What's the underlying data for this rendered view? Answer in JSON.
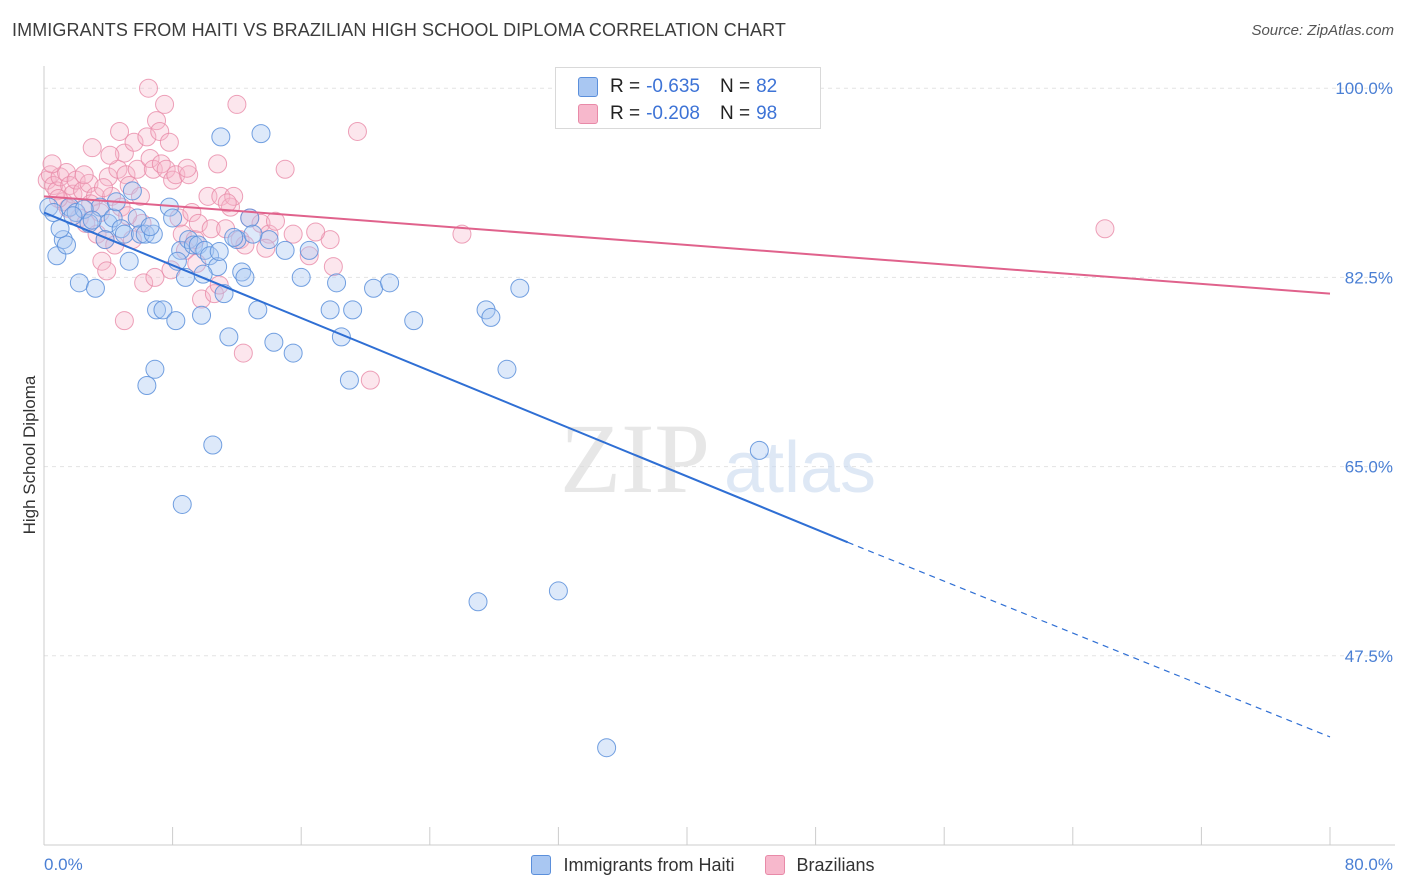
{
  "title": "IMMIGRANTS FROM HAITI VS BRAZILIAN HIGH SCHOOL DIPLOMA CORRELATION CHART",
  "source": "Source: ZipAtlas.com",
  "watermark": {
    "zip": "ZIP",
    "atlas": "atlas"
  },
  "legend_top": {
    "rows": [
      {
        "r_label": "R =",
        "r_value": "-0.635",
        "n_label": "N =",
        "n_value": "82"
      },
      {
        "r_label": "R =",
        "r_value": "-0.208",
        "n_label": "N =",
        "n_value": "98"
      }
    ]
  },
  "legend_bottom": {
    "items": [
      {
        "label": "Immigrants from Haiti"
      },
      {
        "label": "Brazilians"
      }
    ]
  },
  "colors": {
    "blue_fill": "#a9c7f2",
    "blue_stroke": "#5b8fdb",
    "blue_line": "#2f6fd4",
    "pink_fill": "#f7b8cc",
    "pink_stroke": "#e88aa8",
    "pink_line": "#e0628c",
    "tick_text": "#4a7fd4",
    "grid": "#e3e3e3"
  },
  "chart_data": {
    "type": "scatter",
    "title": "IMMIGRANTS FROM HAITI VS BRAZILIAN HIGH SCHOOL DIPLOMA CORRELATION CHART",
    "xlabel": "",
    "ylabel": "High School Diploma",
    "xlim": [
      0,
      80
    ],
    "ylim": [
      30,
      101.5
    ],
    "x_tick_labels": [
      "0.0%",
      "80.0%"
    ],
    "y_ticks": [
      100,
      82.5,
      65,
      47.5
    ],
    "y_tick_labels": [
      "100.0%",
      "82.5%",
      "65.0%",
      "47.5%"
    ],
    "grid": true,
    "legend_position": "top-center",
    "series": [
      {
        "name": "Immigrants from Haiti",
        "color": "#a9c7f2",
        "trend": {
          "x0": 0,
          "y0": 88.5,
          "x1": 50,
          "y1": 58.0,
          "dash_to_x": 80,
          "dash_to_y": 40.0
        },
        "points": [
          [
            0.3,
            89
          ],
          [
            0.6,
            88.5
          ],
          [
            0.8,
            84.5
          ],
          [
            1.2,
            86
          ],
          [
            1.4,
            85.5
          ],
          [
            1.6,
            89
          ],
          [
            2.0,
            88.5
          ],
          [
            2.2,
            82
          ],
          [
            2.8,
            87.5
          ],
          [
            3.2,
            81.5
          ],
          [
            3.5,
            89
          ],
          [
            4.0,
            87.5
          ],
          [
            4.3,
            88
          ],
          [
            4.8,
            87
          ],
          [
            5.0,
            86.5
          ],
          [
            5.3,
            84
          ],
          [
            5.5,
            90.5
          ],
          [
            6.0,
            86.5
          ],
          [
            6.3,
            86.5
          ],
          [
            6.4,
            72.5
          ],
          [
            6.8,
            86.5
          ],
          [
            6.9,
            74
          ],
          [
            7.0,
            79.5
          ],
          [
            7.4,
            79.5
          ],
          [
            7.8,
            89
          ],
          [
            8.0,
            88
          ],
          [
            8.2,
            78.5
          ],
          [
            8.5,
            85
          ],
          [
            8.8,
            82.5
          ],
          [
            8.6,
            61.5
          ],
          [
            9.0,
            86
          ],
          [
            9.3,
            85.5
          ],
          [
            9.6,
            85.5
          ],
          [
            9.8,
            79
          ],
          [
            10.0,
            85
          ],
          [
            10.3,
            84.5
          ],
          [
            10.5,
            67
          ],
          [
            10.8,
            83.5
          ],
          [
            11.2,
            81
          ],
          [
            11.5,
            77
          ],
          [
            11.0,
            95.5
          ],
          [
            12.0,
            86
          ],
          [
            12.3,
            83
          ],
          [
            12.5,
            82.5
          ],
          [
            12.8,
            88
          ],
          [
            13.3,
            79.5
          ],
          [
            13.5,
            95.8
          ],
          [
            14.0,
            86
          ],
          [
            14.3,
            76.5
          ],
          [
            15.0,
            85
          ],
          [
            15.5,
            75.5
          ],
          [
            16.0,
            82.5
          ],
          [
            16.5,
            85
          ],
          [
            17.8,
            79.5
          ],
          [
            18.2,
            82
          ],
          [
            18.5,
            77
          ],
          [
            19.0,
            73
          ],
          [
            19.2,
            79.5
          ],
          [
            20.5,
            81.5
          ],
          [
            21.5,
            82
          ],
          [
            23.0,
            78.5
          ],
          [
            27.0,
            52.5
          ],
          [
            27.5,
            79.5
          ],
          [
            27.8,
            78.8
          ],
          [
            28.8,
            74
          ],
          [
            29.6,
            81.5
          ],
          [
            32.0,
            53.5
          ],
          [
            35.0,
            39
          ],
          [
            44.5,
            66.5
          ],
          [
            1.0,
            87
          ],
          [
            3.8,
            86
          ],
          [
            5.8,
            88
          ],
          [
            2.5,
            88.8
          ],
          [
            4.5,
            89.5
          ],
          [
            6.6,
            87.2
          ],
          [
            9.9,
            82.8
          ],
          [
            11.8,
            86.2
          ],
          [
            13.0,
            86.5
          ],
          [
            1.8,
            88.2
          ],
          [
            3.0,
            87.8
          ],
          [
            8.3,
            84.0
          ],
          [
            10.9,
            84.9
          ]
        ]
      },
      {
        "name": "Brazilians",
        "color": "#f7b8cc",
        "trend": {
          "x0": 0,
          "y0": 90.0,
          "x1": 80,
          "y1": 81.0
        },
        "points": [
          [
            0.2,
            91.5
          ],
          [
            0.4,
            92
          ],
          [
            0.6,
            91
          ],
          [
            0.8,
            90.5
          ],
          [
            1.0,
            91.8
          ],
          [
            1.2,
            89.5
          ],
          [
            1.4,
            92.2
          ],
          [
            1.6,
            91
          ],
          [
            1.8,
            90.2
          ],
          [
            2.0,
            91.5
          ],
          [
            2.2,
            88
          ],
          [
            2.4,
            90.5
          ],
          [
            2.6,
            87.5
          ],
          [
            2.8,
            91.2
          ],
          [
            3.0,
            94.5
          ],
          [
            3.2,
            90
          ],
          [
            3.3,
            86.5
          ],
          [
            3.5,
            88.5
          ],
          [
            3.6,
            84
          ],
          [
            3.8,
            86
          ],
          [
            4.0,
            91.8
          ],
          [
            4.2,
            90
          ],
          [
            4.4,
            85.5
          ],
          [
            4.6,
            92.5
          ],
          [
            4.8,
            89
          ],
          [
            5.0,
            94
          ],
          [
            5.1,
            92
          ],
          [
            5.3,
            91
          ],
          [
            5.5,
            86
          ],
          [
            5.6,
            95
          ],
          [
            5.8,
            92.5
          ],
          [
            6.0,
            90
          ],
          [
            6.1,
            87.5
          ],
          [
            6.2,
            82
          ],
          [
            6.4,
            95.5
          ],
          [
            6.6,
            93.5
          ],
          [
            6.8,
            92.5
          ],
          [
            7.0,
            97
          ],
          [
            7.2,
            96
          ],
          [
            7.3,
            93
          ],
          [
            7.5,
            98.5
          ],
          [
            7.6,
            92.5
          ],
          [
            7.8,
            95
          ],
          [
            8.0,
            91.5
          ],
          [
            8.2,
            92
          ],
          [
            8.4,
            88
          ],
          [
            8.6,
            86.5
          ],
          [
            8.8,
            85
          ],
          [
            9.0,
            92
          ],
          [
            9.2,
            88.5
          ],
          [
            9.4,
            86
          ],
          [
            9.6,
            87.5
          ],
          [
            9.8,
            80.5
          ],
          [
            10.2,
            90
          ],
          [
            10.4,
            87
          ],
          [
            10.6,
            81
          ],
          [
            10.8,
            93
          ],
          [
            11.0,
            90
          ],
          [
            11.3,
            87
          ],
          [
            11.6,
            89
          ],
          [
            11.8,
            90
          ],
          [
            12.0,
            98.5
          ],
          [
            12.2,
            86
          ],
          [
            12.5,
            85.5
          ],
          [
            12.8,
            88
          ],
          [
            13.5,
            87.5
          ],
          [
            14.0,
            86.5
          ],
          [
            15.0,
            92.5
          ],
          [
            15.5,
            86.5
          ],
          [
            16.5,
            84.5
          ],
          [
            17.8,
            86
          ],
          [
            18.0,
            83.5
          ],
          [
            19.5,
            96
          ],
          [
            20.3,
            73
          ],
          [
            26.0,
            86.5
          ],
          [
            66.0,
            87
          ],
          [
            6.5,
            100
          ],
          [
            4.7,
            96
          ],
          [
            3.7,
            90.8
          ],
          [
            2.9,
            89.3
          ],
          [
            1.5,
            88.9
          ],
          [
            5.2,
            88.2
          ],
          [
            7.9,
            83.2
          ],
          [
            10.9,
            81.8
          ],
          [
            12.4,
            75.5
          ],
          [
            5.0,
            78.5
          ],
          [
            9.5,
            83.8
          ],
          [
            13.8,
            85.2
          ],
          [
            0.5,
            93.0
          ],
          [
            2.5,
            92.0
          ],
          [
            3.9,
            83.1
          ],
          [
            6.9,
            82.5
          ],
          [
            8.9,
            92.6
          ],
          [
            11.4,
            89.4
          ],
          [
            14.4,
            87.7
          ],
          [
            16.9,
            86.7
          ],
          [
            0.9,
            89.8
          ],
          [
            4.1,
            93.8
          ]
        ]
      }
    ]
  }
}
